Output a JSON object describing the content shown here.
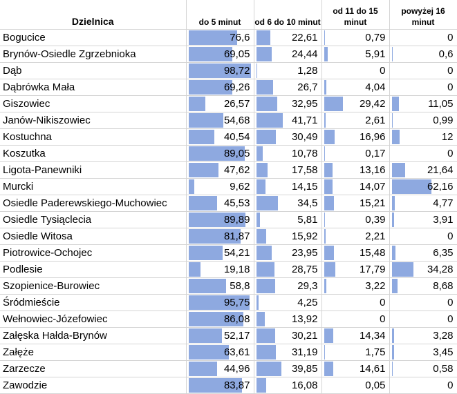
{
  "columns": {
    "name": "Dzielnica",
    "c1": "do 5 minut",
    "c2": "od 6 do 10 minut",
    "c3": "od 11 do 15 minut",
    "c4": "powyżej 16 minut"
  },
  "bar_color": "#8ea9e0",
  "rows": [
    {
      "name": "Bogucice",
      "v": [
        "76,6",
        "22,61",
        "0,79",
        "0"
      ],
      "n": [
        76.6,
        22.61,
        0.79,
        0
      ]
    },
    {
      "name": "Brynów-Osiedle Zgrzebnioka",
      "v": [
        "69,05",
        "24,44",
        "5,91",
        "0,6"
      ],
      "n": [
        69.05,
        24.44,
        5.91,
        0.6
      ]
    },
    {
      "name": "Dąb",
      "v": [
        "98,72",
        "1,28",
        "0",
        "0"
      ],
      "n": [
        98.72,
        1.28,
        0,
        0
      ]
    },
    {
      "name": "Dąbrówka Mała",
      "v": [
        "69,26",
        "26,7",
        "4,04",
        "0"
      ],
      "n": [
        69.26,
        26.7,
        4.04,
        0
      ]
    },
    {
      "name": "Giszowiec",
      "v": [
        "26,57",
        "32,95",
        "29,42",
        "11,05"
      ],
      "n": [
        26.57,
        32.95,
        29.42,
        11.05
      ]
    },
    {
      "name": "Janów-Nikiszowiec",
      "v": [
        "54,68",
        "41,71",
        "2,61",
        "0,99"
      ],
      "n": [
        54.68,
        41.71,
        2.61,
        0.99
      ]
    },
    {
      "name": "Kostuchna",
      "v": [
        "40,54",
        "30,49",
        "16,96",
        "12"
      ],
      "n": [
        40.54,
        30.49,
        16.96,
        12
      ]
    },
    {
      "name": "Koszutka",
      "v": [
        "89,05",
        "10,78",
        "0,17",
        "0"
      ],
      "n": [
        89.05,
        10.78,
        0.17,
        0
      ]
    },
    {
      "name": "Ligota-Panewniki",
      "v": [
        "47,62",
        "17,58",
        "13,16",
        "21,64"
      ],
      "n": [
        47.62,
        17.58,
        13.16,
        21.64
      ]
    },
    {
      "name": "Murcki",
      "v": [
        "9,62",
        "14,15",
        "14,07",
        "62,16"
      ],
      "n": [
        9.62,
        14.15,
        14.07,
        62.16
      ]
    },
    {
      "name": "Osiedle Paderewskiego-Muchowiec",
      "v": [
        "45,53",
        "34,5",
        "15,21",
        "4,77"
      ],
      "n": [
        45.53,
        34.5,
        15.21,
        4.77
      ]
    },
    {
      "name": "Osiedle Tysiąclecia",
      "v": [
        "89,89",
        "5,81",
        "0,39",
        "3,91"
      ],
      "n": [
        89.89,
        5.81,
        0.39,
        3.91
      ]
    },
    {
      "name": "Osiedle Witosa",
      "v": [
        "81,87",
        "15,92",
        "2,21",
        "0"
      ],
      "n": [
        81.87,
        15.92,
        2.21,
        0
      ]
    },
    {
      "name": "Piotrowice-Ochojec",
      "v": [
        "54,21",
        "23,95",
        "15,48",
        "6,35"
      ],
      "n": [
        54.21,
        23.95,
        15.48,
        6.35
      ]
    },
    {
      "name": "Podlesie",
      "v": [
        "19,18",
        "28,75",
        "17,79",
        "34,28"
      ],
      "n": [
        19.18,
        28.75,
        17.79,
        34.28
      ]
    },
    {
      "name": "Szopienice-Burowiec",
      "v": [
        "58,8",
        "29,3",
        "3,22",
        "8,68"
      ],
      "n": [
        58.8,
        29.3,
        3.22,
        8.68
      ]
    },
    {
      "name": "Śródmieście",
      "v": [
        "95,75",
        "4,25",
        "0",
        "0"
      ],
      "n": [
        95.75,
        4.25,
        0,
        0
      ]
    },
    {
      "name": "Wełnowiec-Józefowiec",
      "v": [
        "86,08",
        "13,92",
        "0",
        "0"
      ],
      "n": [
        86.08,
        13.92,
        0,
        0
      ]
    },
    {
      "name": "Załęska Hałda-Brynów",
      "v": [
        "52,17",
        "30,21",
        "14,34",
        "3,28"
      ],
      "n": [
        52.17,
        30.21,
        14.34,
        3.28
      ]
    },
    {
      "name": "Załęże",
      "v": [
        "63,61",
        "31,19",
        "1,75",
        "3,45"
      ],
      "n": [
        63.61,
        31.19,
        1.75,
        3.45
      ]
    },
    {
      "name": "Zarzecze",
      "v": [
        "44,96",
        "39,85",
        "14,61",
        "0,58"
      ],
      "n": [
        44.96,
        39.85,
        14.61,
        0.58
      ]
    },
    {
      "name": "Zawodzie",
      "v": [
        "83,87",
        "16,08",
        "0,05",
        "0"
      ],
      "n": [
        83.87,
        16.08,
        0.05,
        0
      ]
    }
  ]
}
